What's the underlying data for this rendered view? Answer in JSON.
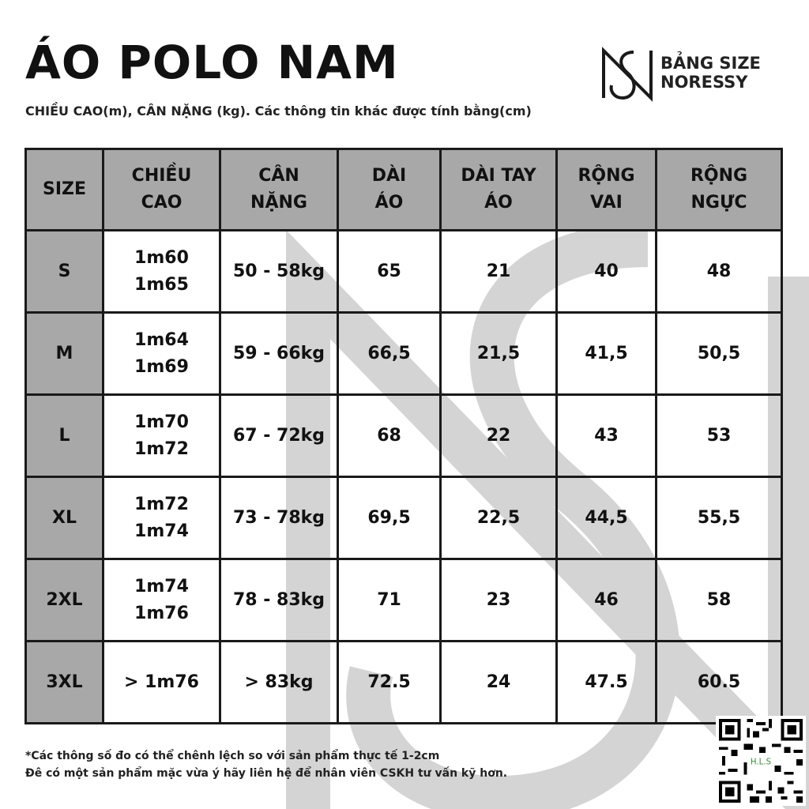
{
  "header": {
    "title": "ÁO POLO NAM",
    "subtitle": "CHIỀU CAO(m), CÂN NẶNG (kg). Các thông tin khác được tính bằng(cm)"
  },
  "brand": {
    "line1": "BẢNG SIZE",
    "line2": "NORESSY",
    "logo_icon": "noressy-ns-monogram-icon"
  },
  "table": {
    "columns": [
      {
        "line1": "SIZE",
        "line2": ""
      },
      {
        "line1": "CHIỀU",
        "line2": "CAO"
      },
      {
        "line1": "CÂN",
        "line2": "NẶNG"
      },
      {
        "line1": "DÀI",
        "line2": "ÁO"
      },
      {
        "line1": "DÀI TAY",
        "line2": "ÁO"
      },
      {
        "line1": "RỘNG",
        "line2": "VAI"
      },
      {
        "line1": "RỘNG",
        "line2": "NGỰC"
      }
    ],
    "rows": [
      {
        "size": "S",
        "height1": "1m60",
        "height2": "1m65",
        "weight": "50 - 58kg",
        "length": "65",
        "sleeve": "21",
        "shoulder": "40",
        "chest": "48"
      },
      {
        "size": "M",
        "height1": "1m64",
        "height2": "1m69",
        "weight": "59 - 66kg",
        "length": "66,5",
        "sleeve": "21,5",
        "shoulder": "41,5",
        "chest": "50,5"
      },
      {
        "size": "L",
        "height1": "1m70",
        "height2": "1m72",
        "weight": "67 - 72kg",
        "length": "68",
        "sleeve": "22",
        "shoulder": "43",
        "chest": "53"
      },
      {
        "size": "XL",
        "height1": "1m72",
        "height2": "1m74",
        "weight": "73 - 78kg",
        "length": "69,5",
        "sleeve": "22,5",
        "shoulder": "44,5",
        "chest": "55,5"
      },
      {
        "size": "2XL",
        "height1": "1m74",
        "height2": "1m76",
        "weight": "78 - 83kg",
        "length": "71",
        "sleeve": "23",
        "shoulder": "46",
        "chest": "58"
      },
      {
        "size": "3XL",
        "height1": "> 1m76",
        "height2": "",
        "weight": "> 83kg",
        "length": "72.5",
        "sleeve": "24",
        "shoulder": "47.5",
        "chest": "60.5"
      }
    ]
  },
  "footnote": {
    "line1": "*Các thông số đo có thể chênh lệch so với sản phẩm thực tế 1-2cm",
    "line2": "Đê có một sản phẩm mặc vừa ý hãy liên hệ để nhân viên CSKH tư vấn kỹ hơn."
  },
  "qr": {
    "icon": "qr-code-icon",
    "label": "H.L.S"
  },
  "colors": {
    "header_fill": "#a8a8a8",
    "border": "#1a1a1a",
    "watermark": "#d4d4d4"
  }
}
